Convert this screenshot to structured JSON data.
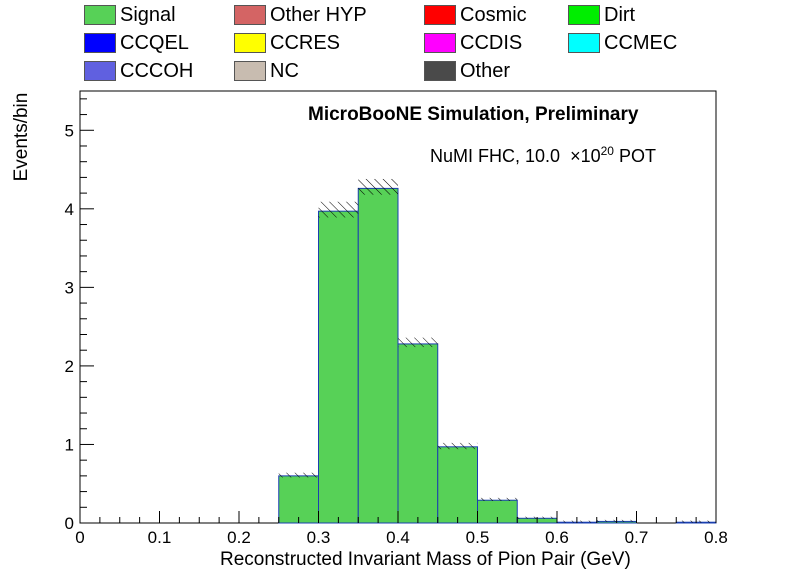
{
  "legend": [
    {
      "label": "Signal",
      "color": "#57d157"
    },
    {
      "label": "Other HYP",
      "color": "#d46464"
    },
    {
      "label": "Cosmic",
      "color": "#ff0000"
    },
    {
      "label": "Dirt",
      "color": "#00ee00"
    },
    {
      "label": "CCQEL",
      "color": "#0000ff"
    },
    {
      "label": "CCRES",
      "color": "#ffff00"
    },
    {
      "label": "CCDIS",
      "color": "#ff00ff"
    },
    {
      "label": "CCMEC",
      "color": "#00ffff"
    },
    {
      "label": "CCCOH",
      "color": "#6060e0"
    },
    {
      "label": "NC",
      "color": "#c8bcb0"
    },
    {
      "label": "Other",
      "color": "#4a4a4a"
    }
  ],
  "annotations": {
    "simulation": "MicroBooNE Simulation, Preliminary",
    "pot_prefix": "NuMI FHC, 10.0",
    "pot_times": "×",
    "pot_base": "10",
    "pot_exp": "20",
    "pot_suffix": "POT"
  },
  "chart_data": {
    "type": "bar",
    "xlabel": "Reconstructed Invariant Mass of Pion Pair (GeV)",
    "ylabel": "Events/bin",
    "xlim": [
      0,
      0.8
    ],
    "ylim": [
      0,
      5.5
    ],
    "x_ticks": [
      "0",
      "0.1",
      "0.2",
      "0.3",
      "0.4",
      "0.5",
      "0.6",
      "0.7",
      "0.8"
    ],
    "y_ticks": [
      "0",
      "1",
      "2",
      "3",
      "4",
      "5"
    ],
    "bin_edges": [
      0.0,
      0.05,
      0.1,
      0.15,
      0.2,
      0.25,
      0.3,
      0.35,
      0.4,
      0.45,
      0.5,
      0.55,
      0.6,
      0.65,
      0.7,
      0.75,
      0.8
    ],
    "series": [
      {
        "name": "Signal",
        "color": "#57d157",
        "values": [
          0,
          0,
          0,
          0,
          0,
          0.6,
          3.97,
          4.26,
          2.28,
          0.97,
          0.29,
          0.06,
          0.01,
          0.02,
          0.0,
          0.01
        ]
      }
    ],
    "total_values": [
      0,
      0,
      0,
      0,
      0,
      0.61,
      3.99,
      4.28,
      2.3,
      0.98,
      0.3,
      0.07,
      0.02,
      0.03,
      0.0,
      0.02
    ],
    "uncertainty": [
      0,
      0,
      0,
      0,
      0,
      0.03,
      0.1,
      0.1,
      0.06,
      0.04,
      0.02,
      0.01,
      0.01,
      0.01,
      0,
      0.01
    ],
    "grid": false
  }
}
